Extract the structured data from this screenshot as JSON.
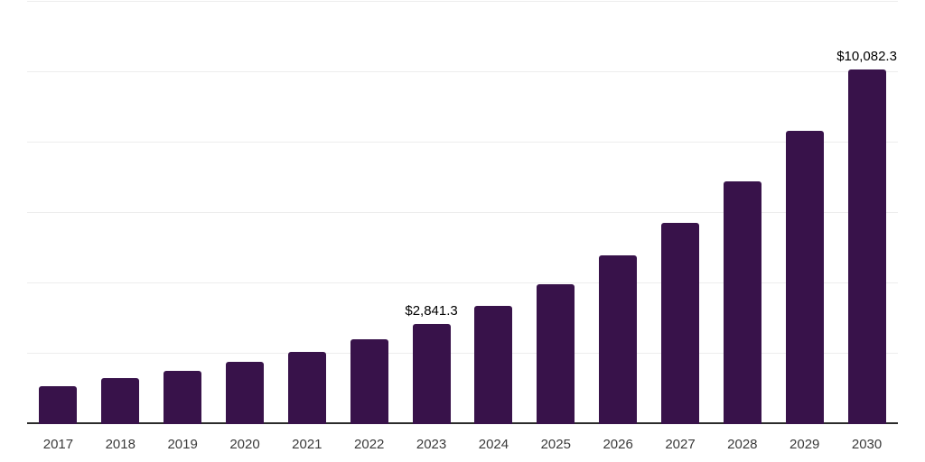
{
  "chart_data": {
    "type": "bar",
    "title": "",
    "xlabel": "",
    "ylabel": "",
    "categories": [
      "2017",
      "2018",
      "2019",
      "2020",
      "2021",
      "2022",
      "2023",
      "2024",
      "2025",
      "2026",
      "2027",
      "2028",
      "2029",
      "2030"
    ],
    "values": [
      1085,
      1300,
      1520,
      1765,
      2055,
      2410,
      2841.3,
      3365,
      3980,
      4795,
      5720,
      6890,
      8340,
      10082.3
    ],
    "labeled_points": [
      {
        "category": "2023",
        "label": "$2,841.3"
      },
      {
        "category": "2030",
        "label": "$10,082.3"
      }
    ],
    "ylim": [
      0,
      12000
    ],
    "gridline_step": 2000,
    "grid": true,
    "legend": false,
    "colors": {
      "bar": "#38124A",
      "gridline": "#ededed",
      "axis_line": "#2b2b2b",
      "tick_label": "#3a3a3a",
      "data_label": "#000000",
      "background": "#ffffff"
    }
  }
}
